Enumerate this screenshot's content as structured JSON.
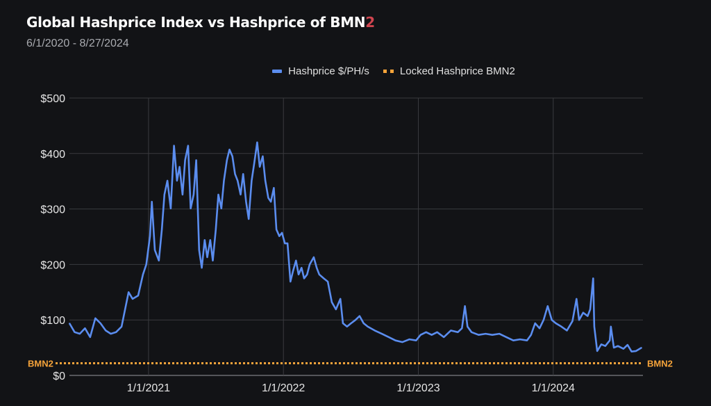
{
  "header": {
    "title_main": "Global Hashprice Index vs Hashprice of BMN",
    "title_accent": "2",
    "subtitle": "6/1/2020 - 8/27/2024"
  },
  "chart_data": {
    "type": "line",
    "title": "Global Hashprice Index vs Hashprice of BMN2",
    "subtitle": "6/1/2020 - 8/27/2024",
    "xlim": [
      "2020-06-01",
      "2024-08-27"
    ],
    "ylim": [
      0,
      500
    ],
    "y_ticks": [
      0,
      100,
      200,
      300,
      400,
      500
    ],
    "y_tick_labels": [
      "$0",
      "$100",
      "$200",
      "$300",
      "$400",
      "$500"
    ],
    "x_ticks": [
      "2021-01-01",
      "2022-01-01",
      "2023-01-01",
      "2024-01-01"
    ],
    "x_tick_labels": [
      "1/1/2021",
      "1/1/2022",
      "1/1/2023",
      "1/1/2024"
    ],
    "grid": true,
    "legend_position": "top",
    "colors": {
      "hashprice": "#5b8def",
      "locked": "#f5a33a",
      "background": "#121316",
      "grid": "#3a3b3f"
    },
    "series": [
      {
        "name": "Hashprice $/PH/s",
        "style": "solid",
        "points": [
          [
            "2020-06-01",
            94
          ],
          [
            "2020-06-15",
            78
          ],
          [
            "2020-06-29",
            75
          ],
          [
            "2020-07-13",
            85
          ],
          [
            "2020-07-27",
            69
          ],
          [
            "2020-08-10",
            103
          ],
          [
            "2020-08-24",
            94
          ],
          [
            "2020-09-07",
            81
          ],
          [
            "2020-09-21",
            75
          ],
          [
            "2020-10-05",
            78
          ],
          [
            "2020-10-20",
            88
          ],
          [
            "2020-11-08",
            150
          ],
          [
            "2020-11-19",
            138
          ],
          [
            "2020-12-04",
            144
          ],
          [
            "2020-12-17",
            182
          ],
          [
            "2020-12-26",
            200
          ],
          [
            "2021-01-05",
            251
          ],
          [
            "2021-01-10",
            313
          ],
          [
            "2021-01-18",
            226
          ],
          [
            "2021-01-29",
            207
          ],
          [
            "2021-02-06",
            263
          ],
          [
            "2021-02-13",
            326
          ],
          [
            "2021-02-21",
            351
          ],
          [
            "2021-03-02",
            301
          ],
          [
            "2021-03-11",
            414
          ],
          [
            "2021-03-19",
            351
          ],
          [
            "2021-03-26",
            376
          ],
          [
            "2021-04-03",
            326
          ],
          [
            "2021-04-10",
            388
          ],
          [
            "2021-04-18",
            414
          ],
          [
            "2021-04-25",
            301
          ],
          [
            "2021-05-03",
            326
          ],
          [
            "2021-05-10",
            388
          ],
          [
            "2021-05-18",
            226
          ],
          [
            "2021-05-25",
            194
          ],
          [
            "2021-06-02",
            244
          ],
          [
            "2021-06-09",
            213
          ],
          [
            "2021-06-17",
            244
          ],
          [
            "2021-06-24",
            207
          ],
          [
            "2021-07-02",
            263
          ],
          [
            "2021-07-09",
            326
          ],
          [
            "2021-07-17",
            301
          ],
          [
            "2021-07-24",
            351
          ],
          [
            "2021-08-01",
            388
          ],
          [
            "2021-08-08",
            407
          ],
          [
            "2021-08-16",
            395
          ],
          [
            "2021-08-23",
            363
          ],
          [
            "2021-08-30",
            351
          ],
          [
            "2021-09-07",
            326
          ],
          [
            "2021-09-14",
            363
          ],
          [
            "2021-09-22",
            313
          ],
          [
            "2021-09-29",
            282
          ],
          [
            "2021-10-07",
            351
          ],
          [
            "2021-10-14",
            382
          ],
          [
            "2021-10-22",
            420
          ],
          [
            "2021-10-29",
            376
          ],
          [
            "2021-11-06",
            395
          ],
          [
            "2021-11-13",
            351
          ],
          [
            "2021-11-21",
            320
          ],
          [
            "2021-11-28",
            313
          ],
          [
            "2021-12-06",
            338
          ],
          [
            "2021-12-13",
            263
          ],
          [
            "2021-12-21",
            251
          ],
          [
            "2021-12-28",
            257
          ],
          [
            "2022-01-05",
            238
          ],
          [
            "2022-01-12",
            238
          ],
          [
            "2022-01-20",
            169
          ],
          [
            "2022-01-27",
            188
          ],
          [
            "2022-02-04",
            207
          ],
          [
            "2022-02-11",
            182
          ],
          [
            "2022-02-19",
            194
          ],
          [
            "2022-02-26",
            175
          ],
          [
            "2022-03-06",
            182
          ],
          [
            "2022-03-13",
            200
          ],
          [
            "2022-03-24",
            213
          ],
          [
            "2022-04-01",
            194
          ],
          [
            "2022-04-08",
            182
          ],
          [
            "2022-04-20",
            175
          ],
          [
            "2022-05-01",
            169
          ],
          [
            "2022-05-12",
            132
          ],
          [
            "2022-05-23",
            119
          ],
          [
            "2022-06-04",
            138
          ],
          [
            "2022-06-11",
            94
          ],
          [
            "2022-06-22",
            88
          ],
          [
            "2022-07-03",
            94
          ],
          [
            "2022-07-15",
            100
          ],
          [
            "2022-07-26",
            107
          ],
          [
            "2022-08-06",
            94
          ],
          [
            "2022-08-17",
            88
          ],
          [
            "2022-09-05",
            81
          ],
          [
            "2022-09-24",
            75
          ],
          [
            "2022-10-13",
            69
          ],
          [
            "2022-10-31",
            63
          ],
          [
            "2022-11-19",
            60
          ],
          [
            "2022-12-08",
            65
          ],
          [
            "2022-12-26",
            63
          ],
          [
            "2023-01-07",
            73
          ],
          [
            "2023-01-22",
            78
          ],
          [
            "2023-02-06",
            73
          ],
          [
            "2023-02-21",
            78
          ],
          [
            "2023-03-11",
            69
          ],
          [
            "2023-03-30",
            81
          ],
          [
            "2023-04-18",
            78
          ],
          [
            "2023-04-29",
            85
          ],
          [
            "2023-05-07",
            125
          ],
          [
            "2023-05-14",
            88
          ],
          [
            "2023-05-25",
            78
          ],
          [
            "2023-06-13",
            73
          ],
          [
            "2023-07-02",
            75
          ],
          [
            "2023-07-20",
            73
          ],
          [
            "2023-08-08",
            75
          ],
          [
            "2023-08-27",
            69
          ],
          [
            "2023-09-15",
            63
          ],
          [
            "2023-10-03",
            65
          ],
          [
            "2023-10-22",
            63
          ],
          [
            "2023-11-02",
            73
          ],
          [
            "2023-11-13",
            94
          ],
          [
            "2023-11-25",
            85
          ],
          [
            "2023-12-06",
            100
          ],
          [
            "2023-12-17",
            125
          ],
          [
            "2023-12-28",
            100
          ],
          [
            "2024-01-08",
            94
          ],
          [
            "2024-01-23",
            88
          ],
          [
            "2024-02-07",
            81
          ],
          [
            "2024-02-22",
            98
          ],
          [
            "2024-03-04",
            138
          ],
          [
            "2024-03-11",
            100
          ],
          [
            "2024-03-22",
            113
          ],
          [
            "2024-04-03",
            107
          ],
          [
            "2024-04-10",
            119
          ],
          [
            "2024-04-18",
            175
          ],
          [
            "2024-04-21",
            88
          ],
          [
            "2024-04-29",
            44
          ],
          [
            "2024-05-10",
            56
          ],
          [
            "2024-05-21",
            53
          ],
          [
            "2024-06-02",
            63
          ],
          [
            "2024-06-05",
            88
          ],
          [
            "2024-06-13",
            50
          ],
          [
            "2024-06-24",
            53
          ],
          [
            "2024-07-09",
            48
          ],
          [
            "2024-07-20",
            55
          ],
          [
            "2024-07-31",
            43
          ],
          [
            "2024-08-12",
            44
          ],
          [
            "2024-08-27",
            50
          ]
        ]
      },
      {
        "name": "Locked Hashprice BMN2",
        "style": "dotted",
        "value": 22,
        "label": "BMN2"
      }
    ]
  }
}
